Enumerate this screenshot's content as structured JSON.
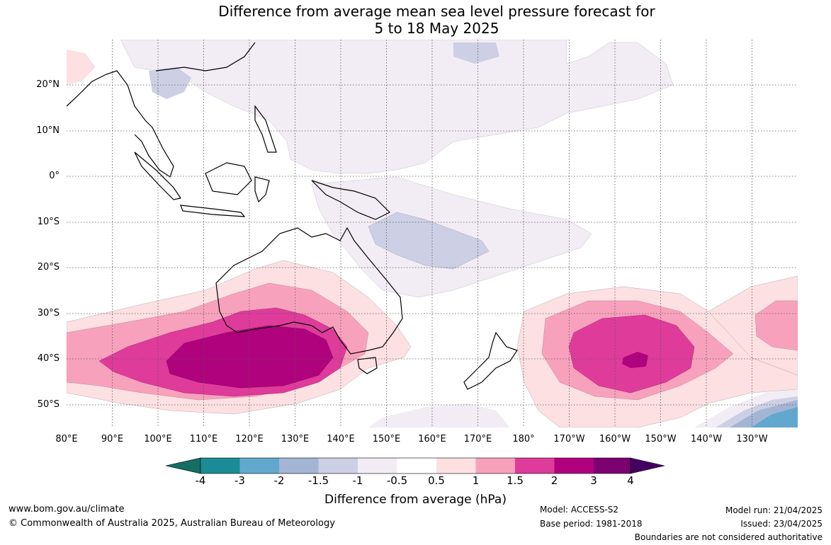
{
  "title": {
    "line1": "Difference from average mean sea level pressure forecast for",
    "line2": "5 to 18 May 2025"
  },
  "map": {
    "lat_labels": [
      "20°N",
      "10°N",
      "0°",
      "10°S",
      "20°S",
      "30°S",
      "40°S",
      "50°S"
    ],
    "lon_labels": [
      "80°E",
      "90°E",
      "100°E",
      "110°E",
      "120°E",
      "130°E",
      "140°E",
      "150°E",
      "160°E",
      "170°E",
      "180°",
      "170°W",
      "160°W",
      "150°W",
      "140°W",
      "130°W"
    ],
    "lat_range": [
      -55,
      30
    ],
    "lon_range": [
      80,
      240
    ]
  },
  "colorbar": {
    "colors": [
      "#146e64",
      "#1b8c96",
      "#62a8ce",
      "#a4b5d4",
      "#cdcfe4",
      "#f2ecf4",
      "#ffffff",
      "#fde0e2",
      "#f8a1bd",
      "#df3b9b",
      "#b1027d",
      "#7b0270",
      "#440061"
    ],
    "labels": [
      "-4",
      "-3",
      "-2",
      "-1.5",
      "-1",
      "-0.5",
      "0.5",
      "1",
      "1.5",
      "2",
      "3",
      "4"
    ],
    "title": "Difference from average (hPa)"
  },
  "footer": {
    "url": "www.bom.gov.au/climate",
    "copyright": "© Commonwealth of Australia 2025, Australian Bureau of Meteorology",
    "model": "Model: ACCESS-S2",
    "base_period": "Base period: 1981-2018",
    "model_run": "Model run: 21/04/2025",
    "issued": "Issued: 23/04/2025",
    "disclaimer": "Boundaries are not considered authoritative"
  }
}
